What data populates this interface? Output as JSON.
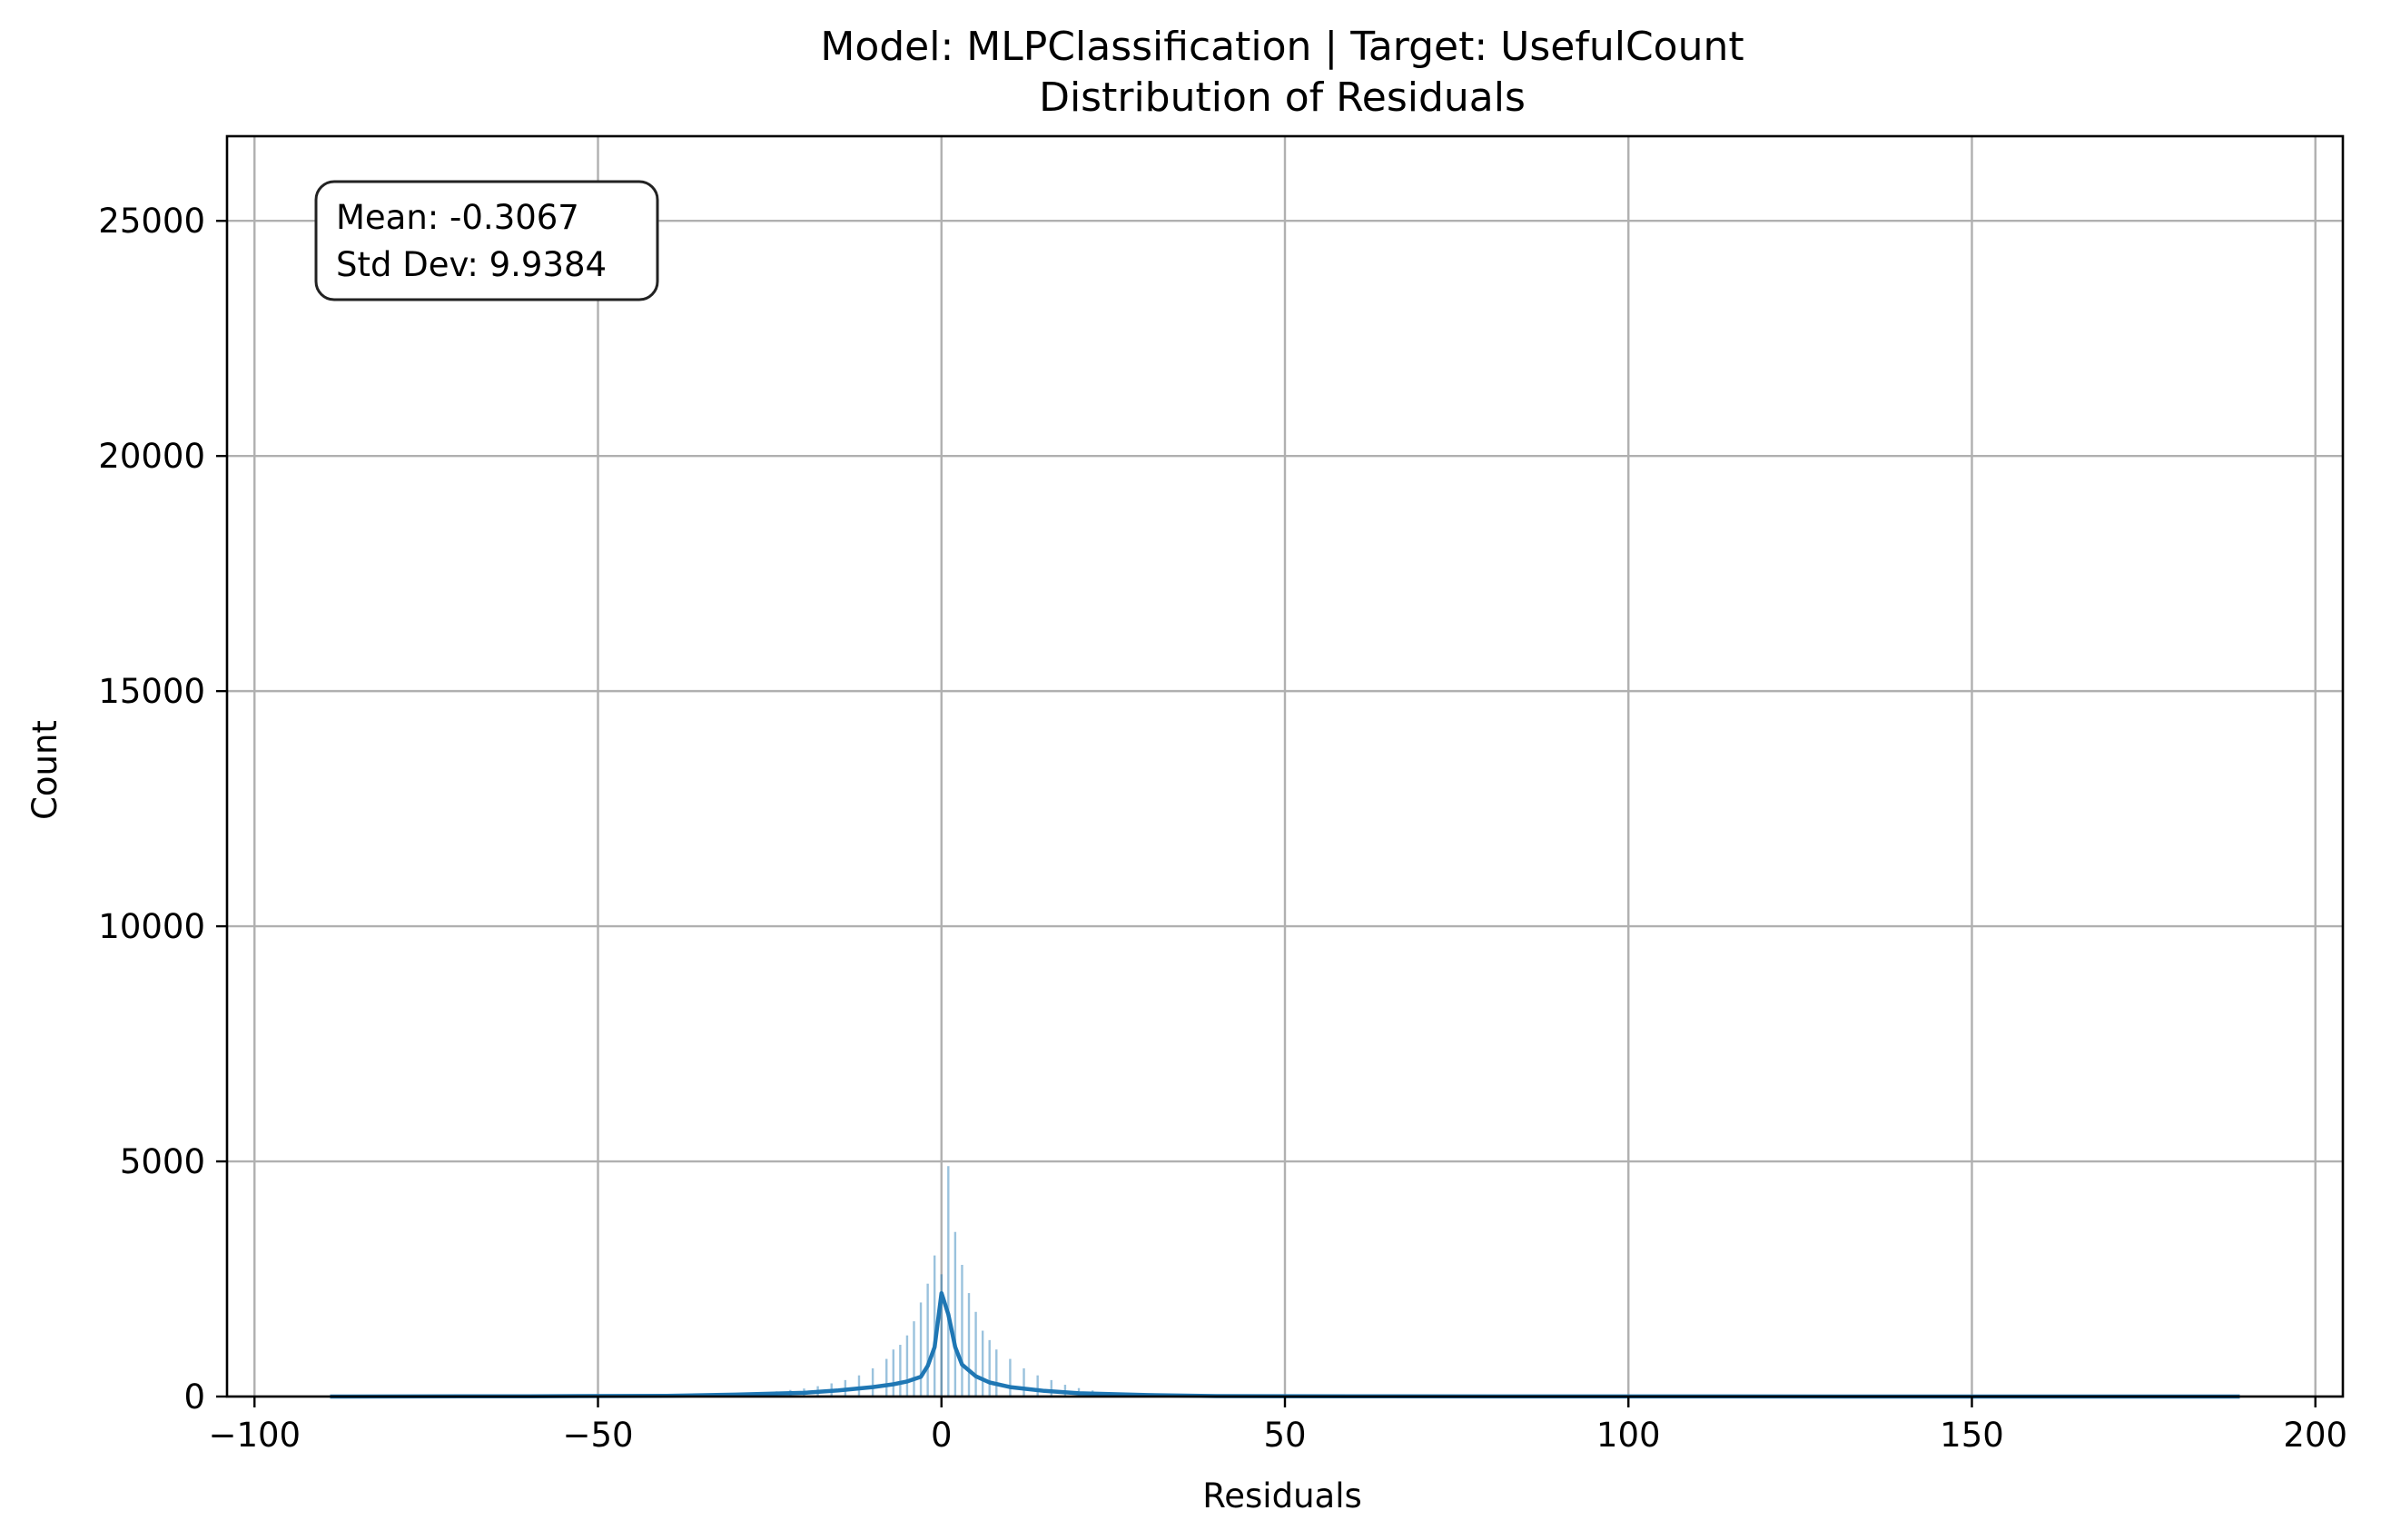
{
  "chart_data": {
    "type": "bar",
    "title": "Model: MLPClassification | Target: UsefulCount",
    "subtitle": "Distribution of Residuals",
    "xlabel": "Residuals",
    "ylabel": "Count",
    "xlim": [
      -104,
      204
    ],
    "ylim": [
      0,
      26800
    ],
    "xticks": [
      -100,
      -50,
      0,
      50,
      100,
      150,
      200
    ],
    "xtick_labels": [
      "−100",
      "−50",
      "0",
      "50",
      "100",
      "150",
      "200"
    ],
    "yticks": [
      0,
      5000,
      10000,
      15000,
      20000,
      25000
    ],
    "ytick_labels": [
      "0",
      "5000",
      "10000",
      "15000",
      "20000",
      "25000"
    ],
    "grid": true,
    "bar_color": "#1f77b4",
    "line_color": "#1f77b4",
    "histogram": {
      "x": [
        -30,
        -28,
        -26,
        -24,
        -22,
        -20,
        -18,
        -16,
        -14,
        -12,
        -10,
        -8,
        -7,
        -6,
        -5,
        -4,
        -3,
        -2,
        -1,
        0,
        1,
        2,
        3,
        4,
        5,
        6,
        7,
        8,
        10,
        12,
        14,
        16,
        18,
        20,
        22,
        24,
        26,
        28,
        30
      ],
      "counts": [
        50,
        60,
        80,
        110,
        140,
        170,
        220,
        280,
        350,
        450,
        600,
        800,
        1000,
        1100,
        1300,
        1600,
        2000,
        2400,
        3000,
        2600,
        4900,
        3500,
        2800,
        2200,
        1800,
        1400,
        1200,
        1000,
        800,
        600,
        450,
        350,
        250,
        180,
        130,
        90,
        60,
        40,
        30
      ]
    },
    "kde": {
      "x": [
        -89,
        -60,
        -40,
        -30,
        -20,
        -15,
        -10,
        -7,
        -5,
        -3,
        -2,
        -1,
        0,
        1,
        2,
        3,
        5,
        7,
        10,
        15,
        20,
        30,
        40,
        60,
        100,
        150,
        189
      ],
      "y": [
        0,
        5,
        15,
        40,
        80,
        130,
        200,
        260,
        320,
        420,
        650,
        1050,
        2200,
        1750,
        1050,
        680,
        430,
        300,
        200,
        120,
        70,
        30,
        10,
        4,
        1,
        0,
        0
      ]
    },
    "stats_box": {
      "mean_label": "Mean: -0.3067",
      "std_label": "Std Dev: 9.9384",
      "position": "top-left"
    }
  }
}
